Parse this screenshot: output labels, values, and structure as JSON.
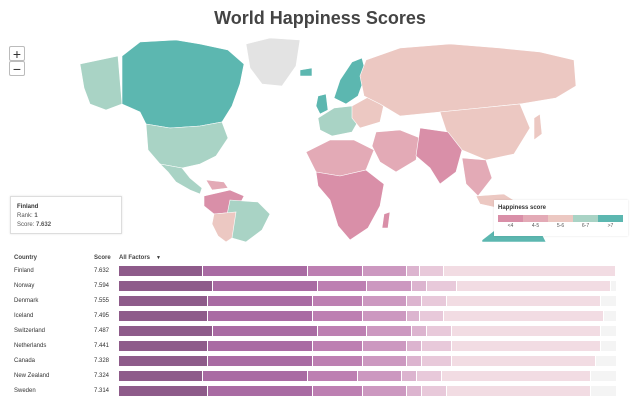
{
  "page": {
    "title": "World Happiness Scores"
  },
  "zoom": {
    "in": "+",
    "out": "−"
  },
  "tooltip": {
    "country": "Finland",
    "rank_label": "Rank:",
    "rank": "1",
    "score_label": "Score:",
    "score": "7.632"
  },
  "legend": {
    "title": "Happiness score",
    "bins": [
      "<4",
      "4-5",
      "5-6",
      "6-7",
      ">7"
    ],
    "colors": [
      "#d98fa8",
      "#e3aab6",
      "#ecc8c2",
      "#a9d3c5",
      "#5cb7b0"
    ]
  },
  "table": {
    "headers": {
      "country": "Country",
      "score": "Score",
      "factors": "All Factors"
    },
    "factor_colors": [
      "#8e5b8a",
      "#a96ba3",
      "#bd7fb2",
      "#cc98c0",
      "#dcb4cf",
      "#e8c9da",
      "#f2dce3"
    ],
    "rows": [
      {
        "country": "Finland",
        "score": "7.632",
        "factors": [
          17,
          21,
          11,
          9,
          2.5,
          5,
          34.5
        ]
      },
      {
        "country": "Norway",
        "score": "7.594",
        "factors": [
          19,
          21,
          10,
          9,
          3,
          6,
          31
        ]
      },
      {
        "country": "Denmark",
        "score": "7.555",
        "factors": [
          18,
          21,
          10,
          9,
          3,
          5,
          31
        ]
      },
      {
        "country": "Iceland",
        "score": "7.495",
        "factors": [
          18,
          21,
          10,
          9,
          2.5,
          5,
          32
        ]
      },
      {
        "country": "Switzerland",
        "score": "7.487",
        "factors": [
          19,
          21,
          10,
          9,
          3,
          5,
          30
        ]
      },
      {
        "country": "Netherlands",
        "score": "7.441",
        "factors": [
          18,
          21,
          10,
          9,
          3,
          6,
          30
        ]
      },
      {
        "country": "Canada",
        "score": "7.328",
        "factors": [
          18,
          21,
          10,
          9,
          3,
          6,
          29
        ]
      },
      {
        "country": "New Zealand",
        "score": "7.324",
        "factors": [
          17,
          21,
          10,
          9,
          3,
          5,
          30
        ]
      },
      {
        "country": "Sweden",
        "score": "7.314",
        "factors": [
          18,
          21,
          10,
          9,
          3,
          5,
          29
        ]
      }
    ]
  }
}
